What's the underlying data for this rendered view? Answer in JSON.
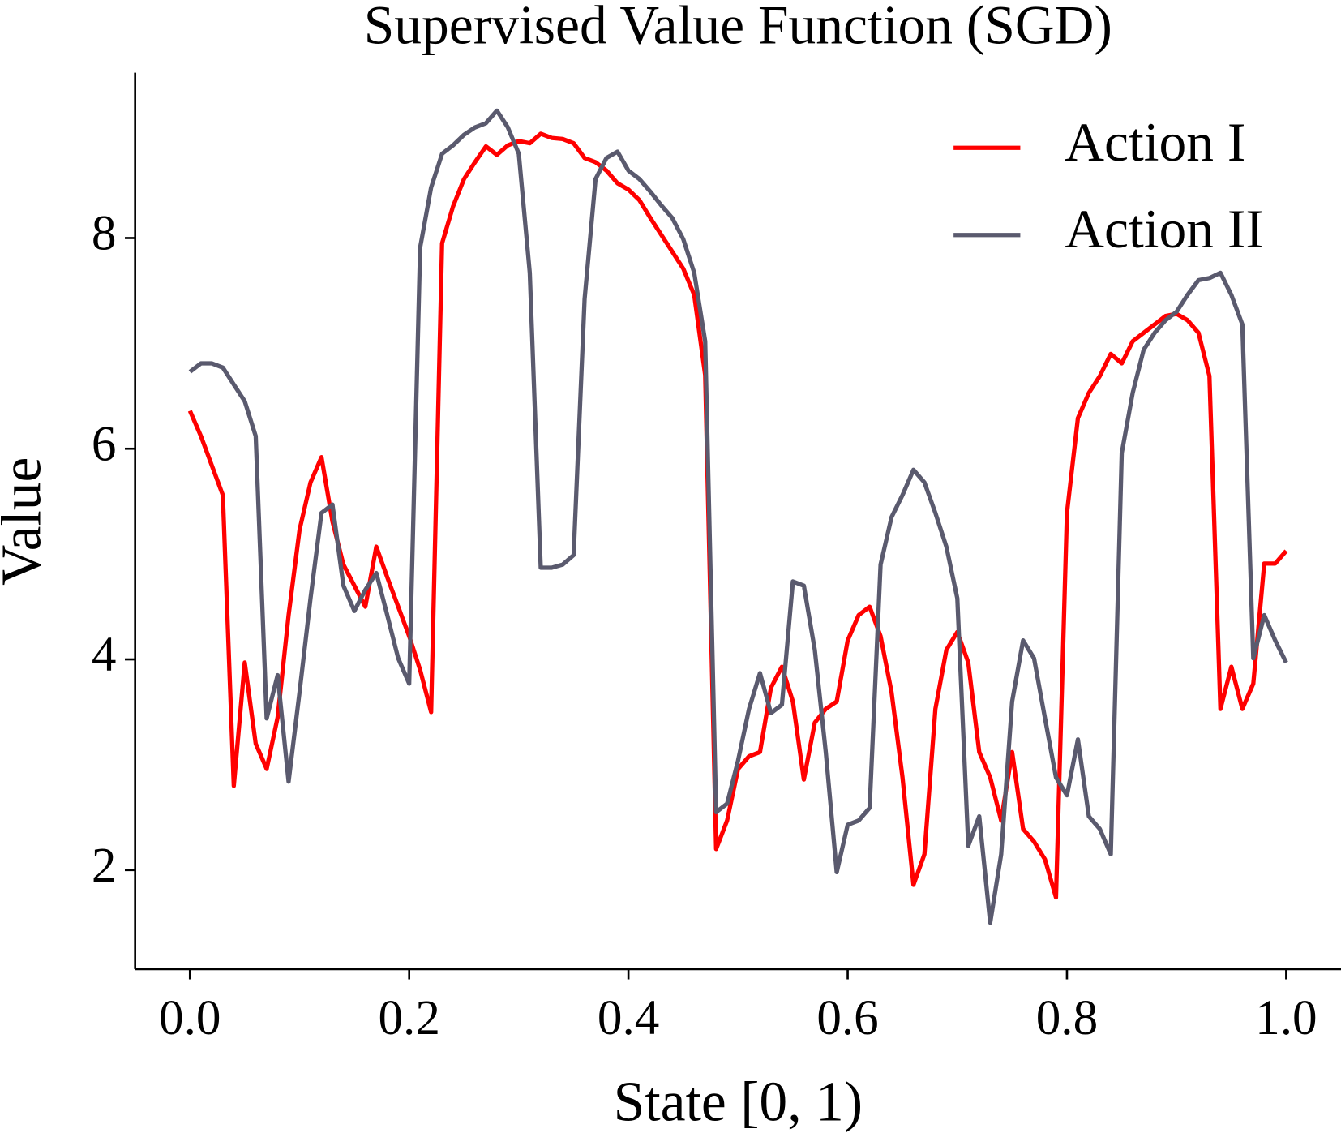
{
  "chart_data": {
    "type": "line",
    "title": "Supervised Value Function (SGD)",
    "xlabel": "State [0, 1)",
    "ylabel": "Value",
    "x": [
      0,
      0.01,
      0.02,
      0.03,
      0.04,
      0.05,
      0.06,
      0.07,
      0.08,
      0.09,
      0.1,
      0.11,
      0.12,
      0.13,
      0.14,
      0.15,
      0.16,
      0.17,
      0.18,
      0.19,
      0.2,
      0.21,
      0.22,
      0.23,
      0.24,
      0.25,
      0.26,
      0.27,
      0.28,
      0.29,
      0.3,
      0.31,
      0.32,
      0.33,
      0.34,
      0.35,
      0.36,
      0.37,
      0.38,
      0.39,
      0.4,
      0.41,
      0.42,
      0.43,
      0.44,
      0.45,
      0.46,
      0.47,
      0.48,
      0.49,
      0.5,
      0.51,
      0.52,
      0.53,
      0.54,
      0.55,
      0.56,
      0.57,
      0.58,
      0.59,
      0.6,
      0.61,
      0.62,
      0.63,
      0.64,
      0.65,
      0.66,
      0.67,
      0.68,
      0.69,
      0.7,
      0.71,
      0.72,
      0.73,
      0.74,
      0.75,
      0.76,
      0.77,
      0.78,
      0.79,
      0.8,
      0.81,
      0.82,
      0.83,
      0.84,
      0.85,
      0.86,
      0.87,
      0.88,
      0.89,
      0.9,
      0.91,
      0.92,
      0.93,
      0.94,
      0.95,
      0.96,
      0.97,
      0.98,
      0.99,
      1
    ],
    "series": [
      {
        "name": "Action I",
        "color": "#ff0000",
        "values": [
          6.36,
          6.12,
          5.84,
          5.56,
          2.8,
          3.97,
          3.2,
          2.96,
          3.45,
          4.42,
          5.23,
          5.68,
          5.92,
          5.31,
          4.9,
          4.7,
          4.5,
          5.07,
          4.78,
          4.5,
          4.22,
          3.9,
          3.5,
          7.95,
          8.3,
          8.56,
          8.72,
          8.87,
          8.79,
          8.88,
          8.92,
          8.9,
          8.99,
          8.95,
          8.94,
          8.9,
          8.76,
          8.72,
          8.64,
          8.52,
          8.46,
          8.36,
          8.19,
          8.03,
          7.87,
          7.71,
          7.46,
          6.7,
          2.2,
          2.47,
          2.96,
          3.08,
          3.12,
          3.73,
          3.93,
          3.6,
          2.86,
          3.4,
          3.53,
          3.6,
          4.18,
          4.42,
          4.5,
          4.22,
          3.69,
          2.88,
          1.86,
          2.15,
          3.53,
          4.09,
          4.26,
          3.97,
          3.12,
          2.88,
          2.47,
          3.12,
          2.39,
          2.27,
          2.1,
          1.74,
          5.39,
          6.29,
          6.53,
          6.69,
          6.9,
          6.81,
          7.02,
          7.1,
          7.18,
          7.26,
          7.28,
          7.22,
          7.1,
          6.69,
          3.53,
          3.93,
          3.53,
          3.77,
          4.91,
          4.91,
          5.03
        ]
      },
      {
        "name": "Action II",
        "color": "#5a5a6e",
        "values": [
          6.73,
          6.81,
          6.81,
          6.77,
          6.61,
          6.45,
          6.12,
          3.44,
          3.85,
          2.84,
          3.69,
          4.58,
          5.39,
          5.47,
          4.7,
          4.46,
          4.66,
          4.82,
          4.42,
          4.01,
          3.77,
          7.91,
          8.48,
          8.8,
          8.88,
          8.98,
          9.05,
          9.09,
          9.21,
          9.05,
          8.8,
          7.67,
          4.87,
          4.87,
          4.9,
          4.99,
          7.42,
          8.56,
          8.76,
          8.82,
          8.64,
          8.56,
          8.44,
          8.31,
          8.19,
          7.99,
          7.67,
          7.02,
          2.55,
          2.63,
          3.04,
          3.53,
          3.87,
          3.49,
          3.57,
          4.74,
          4.7,
          4.09,
          3.12,
          1.98,
          2.43,
          2.47,
          2.59,
          4.9,
          5.35,
          5.56,
          5.8,
          5.68,
          5.39,
          5.07,
          4.58,
          2.23,
          2.51,
          1.5,
          2.15,
          3.6,
          4.18,
          4.01,
          3.44,
          2.88,
          2.71,
          3.24,
          2.51,
          2.39,
          2.15,
          5.96,
          6.53,
          6.94,
          7.1,
          7.22,
          7.3,
          7.46,
          7.6,
          7.62,
          7.67,
          7.46,
          7.18,
          4.01,
          4.42,
          4.18,
          3.97
        ]
      }
    ],
    "xlim": [
      -0.05,
      1.05
    ],
    "ylim": [
      1.06,
      9.57
    ],
    "xticks": [
      {
        "value": 0,
        "label": "0.0"
      },
      {
        "value": 0.2,
        "label": "0.2"
      },
      {
        "value": 0.4,
        "label": "0.4"
      },
      {
        "value": 0.6,
        "label": "0.6"
      },
      {
        "value": 0.8,
        "label": "0.8"
      },
      {
        "value": 1,
        "label": "1.0"
      }
    ],
    "yticks": [
      2,
      4,
      6,
      8
    ],
    "legend": "upper right"
  }
}
